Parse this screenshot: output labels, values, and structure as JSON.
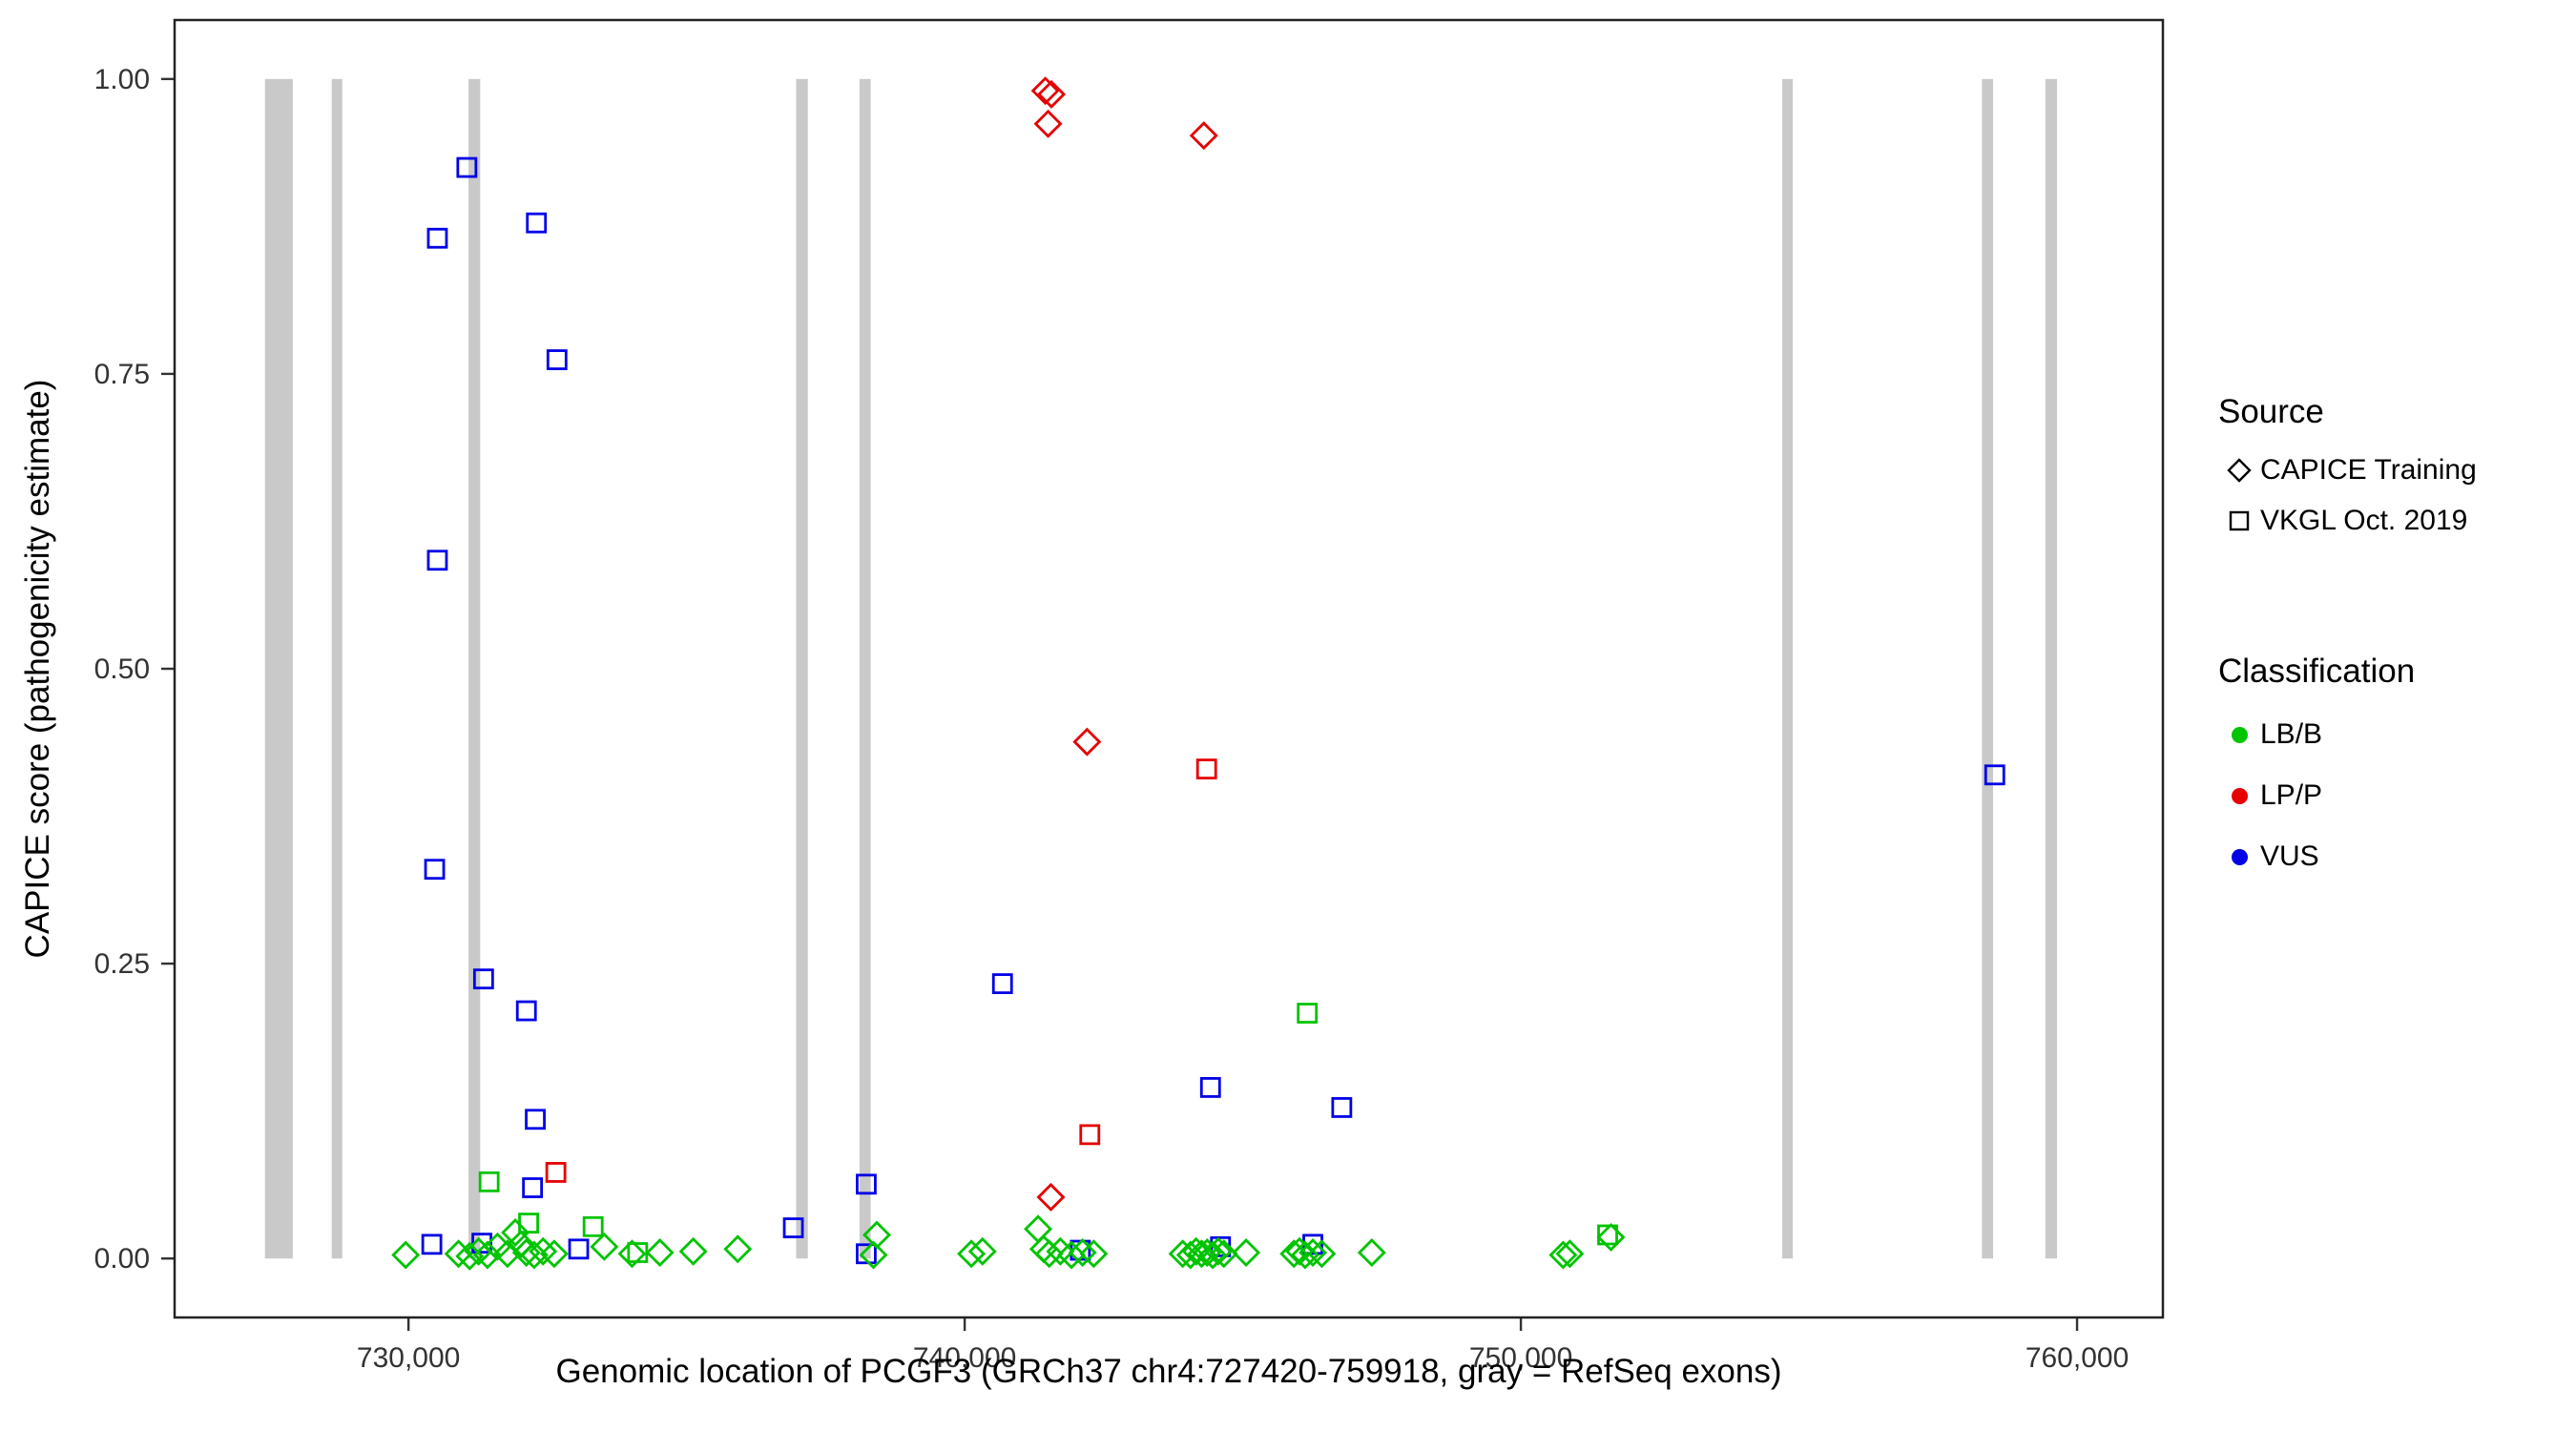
{
  "colors": {
    "LB/B": "#00C400",
    "LP/P": "#E60000",
    "VUS": "#0000E6",
    "exon": "#C9C9C9",
    "axis_text": "#333333",
    "panel_border": "#222222"
  },
  "legend": {
    "source": {
      "title": "Source",
      "items": [
        {
          "label": "CAPICE Training",
          "marker": "diamond"
        },
        {
          "label": "VKGL Oct. 2019",
          "marker": "square"
        }
      ]
    },
    "classification": {
      "title": "Classification",
      "items": [
        {
          "label": "LB/B"
        },
        {
          "label": "LP/P"
        },
        {
          "label": "VUS"
        }
      ]
    }
  },
  "chart_data": {
    "type": "scatter",
    "title": "",
    "xlabel": "Genomic location of PCGF3 (GRCh37 chr4:727420-759918, gray = RefSeq exons)",
    "ylabel": "CAPICE score (pathogenicity estimate)",
    "xlim": [
      725795,
      761543
    ],
    "ylim": [
      -0.05,
      1.05
    ],
    "grid": false,
    "legend_position": "right",
    "x_ticks": [
      {
        "value": 730000,
        "label": "730,000"
      },
      {
        "value": 740000,
        "label": "740,000"
      },
      {
        "value": 750000,
        "label": "750,000"
      },
      {
        "value": 760000,
        "label": "760,000"
      }
    ],
    "y_ticks": [
      {
        "value": 0.0,
        "label": "0.00"
      },
      {
        "value": 0.25,
        "label": "0.25"
      },
      {
        "value": 0.5,
        "label": "0.50"
      },
      {
        "value": 0.75,
        "label": "0.75"
      },
      {
        "value": 1.0,
        "label": "1.00"
      }
    ],
    "exons": [
      {
        "start": 727420,
        "end": 727920
      },
      {
        "start": 728620,
        "end": 728810
      },
      {
        "start": 731080,
        "end": 731290
      },
      {
        "start": 736970,
        "end": 737180
      },
      {
        "start": 738110,
        "end": 738310
      },
      {
        "start": 754700,
        "end": 754890
      },
      {
        "start": 758290,
        "end": 758490
      },
      {
        "start": 759430,
        "end": 759640
      }
    ],
    "points": [
      {
        "x": 741450,
        "y": 0.99,
        "source": "CAPICE Training",
        "classification": "LP/P"
      },
      {
        "x": 741560,
        "y": 0.987,
        "source": "CAPICE Training",
        "classification": "LP/P"
      },
      {
        "x": 741500,
        "y": 0.962,
        "source": "CAPICE Training",
        "classification": "LP/P"
      },
      {
        "x": 744300,
        "y": 0.952,
        "source": "CAPICE Training",
        "classification": "LP/P"
      },
      {
        "x": 742200,
        "y": 0.438,
        "source": "CAPICE Training",
        "classification": "LP/P"
      },
      {
        "x": 741550,
        "y": 0.052,
        "source": "CAPICE Training",
        "classification": "LP/P"
      },
      {
        "x": 744350,
        "y": 0.415,
        "source": "VKGL Oct. 2019",
        "classification": "LP/P"
      },
      {
        "x": 742250,
        "y": 0.105,
        "source": "VKGL Oct. 2019",
        "classification": "LP/P"
      },
      {
        "x": 732650,
        "y": 0.073,
        "source": "VKGL Oct. 2019",
        "classification": "LP/P"
      },
      {
        "x": 731050,
        "y": 0.925,
        "source": "VKGL Oct. 2019",
        "classification": "VUS"
      },
      {
        "x": 732300,
        "y": 0.878,
        "source": "VKGL Oct. 2019",
        "classification": "VUS"
      },
      {
        "x": 730520,
        "y": 0.865,
        "source": "VKGL Oct. 2019",
        "classification": "VUS"
      },
      {
        "x": 732670,
        "y": 0.762,
        "source": "VKGL Oct. 2019",
        "classification": "VUS"
      },
      {
        "x": 730520,
        "y": 0.592,
        "source": "VKGL Oct. 2019",
        "classification": "VUS"
      },
      {
        "x": 730470,
        "y": 0.33,
        "source": "VKGL Oct. 2019",
        "classification": "VUS"
      },
      {
        "x": 731350,
        "y": 0.237,
        "source": "VKGL Oct. 2019",
        "classification": "VUS"
      },
      {
        "x": 732120,
        "y": 0.21,
        "source": "VKGL Oct. 2019",
        "classification": "VUS"
      },
      {
        "x": 732280,
        "y": 0.118,
        "source": "VKGL Oct. 2019",
        "classification": "VUS"
      },
      {
        "x": 732230,
        "y": 0.06,
        "source": "VKGL Oct. 2019",
        "classification": "VUS"
      },
      {
        "x": 738230,
        "y": 0.063,
        "source": "VKGL Oct. 2019",
        "classification": "VUS"
      },
      {
        "x": 740680,
        "y": 0.233,
        "source": "VKGL Oct. 2019",
        "classification": "VUS"
      },
      {
        "x": 744420,
        "y": 0.145,
        "source": "VKGL Oct. 2019",
        "classification": "VUS"
      },
      {
        "x": 746780,
        "y": 0.128,
        "source": "VKGL Oct. 2019",
        "classification": "VUS"
      },
      {
        "x": 758520,
        "y": 0.41,
        "source": "VKGL Oct. 2019",
        "classification": "VUS"
      },
      {
        "x": 736920,
        "y": 0.026,
        "source": "VKGL Oct. 2019",
        "classification": "VUS"
      },
      {
        "x": 738230,
        "y": 0.004,
        "source": "VKGL Oct. 2019",
        "classification": "VUS"
      },
      {
        "x": 730420,
        "y": 0.012,
        "source": "VKGL Oct. 2019",
        "classification": "VUS"
      },
      {
        "x": 731320,
        "y": 0.013,
        "source": "VKGL Oct. 2019",
        "classification": "VUS"
      },
      {
        "x": 733060,
        "y": 0.008,
        "source": "VKGL Oct. 2019",
        "classification": "VUS"
      },
      {
        "x": 742080,
        "y": 0.007,
        "source": "VKGL Oct. 2019",
        "classification": "VUS"
      },
      {
        "x": 746260,
        "y": 0.012,
        "source": "VKGL Oct. 2019",
        "classification": "VUS"
      },
      {
        "x": 744600,
        "y": 0.01,
        "source": "VKGL Oct. 2019",
        "classification": "VUS"
      },
      {
        "x": 731450,
        "y": 0.065,
        "source": "VKGL Oct. 2019",
        "classification": "LB/B"
      },
      {
        "x": 746160,
        "y": 0.208,
        "source": "VKGL Oct. 2019",
        "classification": "LB/B"
      },
      {
        "x": 751560,
        "y": 0.02,
        "source": "VKGL Oct. 2019",
        "classification": "LB/B"
      },
      {
        "x": 732160,
        "y": 0.03,
        "source": "VKGL Oct. 2019",
        "classification": "LB/B"
      },
      {
        "x": 734120,
        "y": 0.005,
        "source": "VKGL Oct. 2019",
        "classification": "LB/B"
      },
      {
        "x": 733320,
        "y": 0.027,
        "source": "VKGL Oct. 2019",
        "classification": "LB/B"
      },
      {
        "x": 729950,
        "y": 0.003,
        "source": "CAPICE Training",
        "classification": "LB/B"
      },
      {
        "x": 730900,
        "y": 0.004,
        "source": "CAPICE Training",
        "classification": "LB/B"
      },
      {
        "x": 731100,
        "y": 0.002,
        "source": "CAPICE Training",
        "classification": "LB/B"
      },
      {
        "x": 731260,
        "y": 0.006,
        "source": "CAPICE Training",
        "classification": "LB/B"
      },
      {
        "x": 731420,
        "y": 0.003,
        "source": "CAPICE Training",
        "classification": "LB/B"
      },
      {
        "x": 731600,
        "y": 0.01,
        "source": "CAPICE Training",
        "classification": "LB/B"
      },
      {
        "x": 731780,
        "y": 0.004,
        "source": "CAPICE Training",
        "classification": "LB/B"
      },
      {
        "x": 731920,
        "y": 0.022,
        "source": "CAPICE Training",
        "classification": "LB/B"
      },
      {
        "x": 732020,
        "y": 0.012,
        "source": "CAPICE Training",
        "classification": "LB/B"
      },
      {
        "x": 732120,
        "y": 0.005,
        "source": "CAPICE Training",
        "classification": "LB/B"
      },
      {
        "x": 732260,
        "y": 0.003,
        "source": "CAPICE Training",
        "classification": "LB/B"
      },
      {
        "x": 732420,
        "y": 0.006,
        "source": "CAPICE Training",
        "classification": "LB/B"
      },
      {
        "x": 732620,
        "y": 0.004,
        "source": "CAPICE Training",
        "classification": "LB/B"
      },
      {
        "x": 733520,
        "y": 0.01,
        "source": "CAPICE Training",
        "classification": "LB/B"
      },
      {
        "x": 734020,
        "y": 0.004,
        "source": "CAPICE Training",
        "classification": "LB/B"
      },
      {
        "x": 734520,
        "y": 0.005,
        "source": "CAPICE Training",
        "classification": "LB/B"
      },
      {
        "x": 735120,
        "y": 0.006,
        "source": "CAPICE Training",
        "classification": "LB/B"
      },
      {
        "x": 735920,
        "y": 0.008,
        "source": "CAPICE Training",
        "classification": "LB/B"
      },
      {
        "x": 738420,
        "y": 0.02,
        "source": "CAPICE Training",
        "classification": "LB/B"
      },
      {
        "x": 738360,
        "y": 0.003,
        "source": "CAPICE Training",
        "classification": "LB/B"
      },
      {
        "x": 740120,
        "y": 0.004,
        "source": "CAPICE Training",
        "classification": "LB/B"
      },
      {
        "x": 740320,
        "y": 0.006,
        "source": "CAPICE Training",
        "classification": "LB/B"
      },
      {
        "x": 741320,
        "y": 0.025,
        "source": "CAPICE Training",
        "classification": "LB/B"
      },
      {
        "x": 741420,
        "y": 0.008,
        "source": "CAPICE Training",
        "classification": "LB/B"
      },
      {
        "x": 741520,
        "y": 0.004,
        "source": "CAPICE Training",
        "classification": "LB/B"
      },
      {
        "x": 741720,
        "y": 0.006,
        "source": "CAPICE Training",
        "classification": "LB/B"
      },
      {
        "x": 741920,
        "y": 0.003,
        "source": "CAPICE Training",
        "classification": "LB/B"
      },
      {
        "x": 742120,
        "y": 0.005,
        "source": "CAPICE Training",
        "classification": "LB/B"
      },
      {
        "x": 742320,
        "y": 0.004,
        "source": "CAPICE Training",
        "classification": "LB/B"
      },
      {
        "x": 743920,
        "y": 0.004,
        "source": "CAPICE Training",
        "classification": "LB/B"
      },
      {
        "x": 744060,
        "y": 0.003,
        "source": "CAPICE Training",
        "classification": "LB/B"
      },
      {
        "x": 744160,
        "y": 0.006,
        "source": "CAPICE Training",
        "classification": "LB/B"
      },
      {
        "x": 744260,
        "y": 0.004,
        "source": "CAPICE Training",
        "classification": "LB/B"
      },
      {
        "x": 744360,
        "y": 0.005,
        "source": "CAPICE Training",
        "classification": "LB/B"
      },
      {
        "x": 744460,
        "y": 0.003,
        "source": "CAPICE Training",
        "classification": "LB/B"
      },
      {
        "x": 744560,
        "y": 0.006,
        "source": "CAPICE Training",
        "classification": "LB/B"
      },
      {
        "x": 744660,
        "y": 0.004,
        "source": "CAPICE Training",
        "classification": "LB/B"
      },
      {
        "x": 745060,
        "y": 0.005,
        "source": "CAPICE Training",
        "classification": "LB/B"
      },
      {
        "x": 745920,
        "y": 0.004,
        "source": "CAPICE Training",
        "classification": "LB/B"
      },
      {
        "x": 746020,
        "y": 0.006,
        "source": "CAPICE Training",
        "classification": "LB/B"
      },
      {
        "x": 746120,
        "y": 0.003,
        "source": "CAPICE Training",
        "classification": "LB/B"
      },
      {
        "x": 746260,
        "y": 0.005,
        "source": "CAPICE Training",
        "classification": "LB/B"
      },
      {
        "x": 746420,
        "y": 0.004,
        "source": "CAPICE Training",
        "classification": "LB/B"
      },
      {
        "x": 747320,
        "y": 0.005,
        "source": "CAPICE Training",
        "classification": "LB/B"
      },
      {
        "x": 750760,
        "y": 0.003,
        "source": "CAPICE Training",
        "classification": "LB/B"
      },
      {
        "x": 750880,
        "y": 0.004,
        "source": "CAPICE Training",
        "classification": "LB/B"
      },
      {
        "x": 751620,
        "y": 0.018,
        "source": "CAPICE Training",
        "classification": "LB/B"
      }
    ]
  }
}
